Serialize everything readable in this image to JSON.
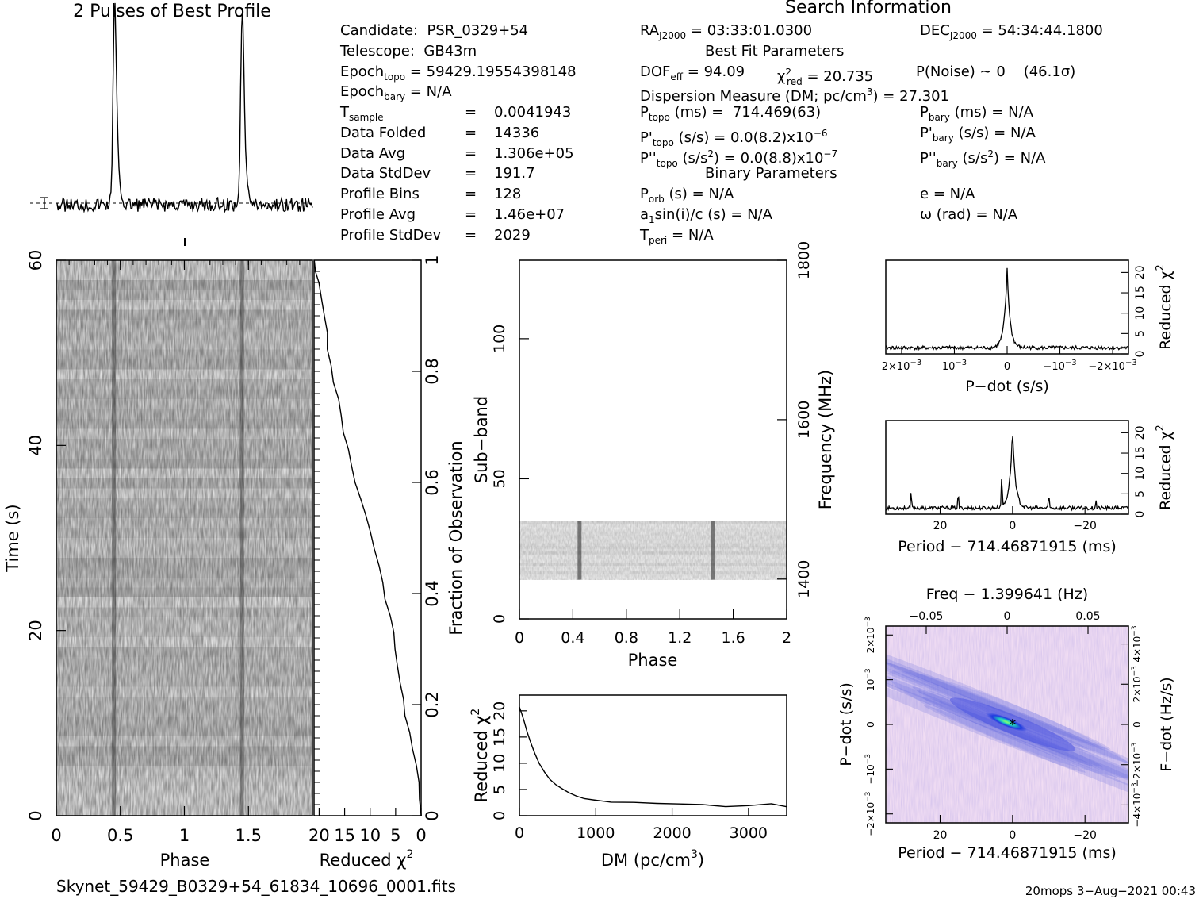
{
  "header": {
    "pulses_title": "2 Pulses of Best Profile",
    "search_title": "Search Information",
    "best_fit_title": "Best Fit Parameters",
    "binary_title": "Binary Parameters"
  },
  "candidate_info": {
    "candidate": {
      "label": "Candidate:",
      "value": "PSR_0329+54"
    },
    "telescope": {
      "label": "Telescope:",
      "value": "GB43m"
    },
    "epoch_topo": {
      "label": "Epoch",
      "sub": "topo",
      "value": "= 59429.19554398148"
    },
    "epoch_bary": {
      "label": "Epoch",
      "sub": "bary",
      "value": "= N/A"
    },
    "t_sample": {
      "label": "T",
      "sub": "sample",
      "eq": "=",
      "value": "0.0041943"
    },
    "data_folded": {
      "label": "Data Folded",
      "eq": "=",
      "value": "14336"
    },
    "data_avg": {
      "label": "Data Avg",
      "eq": "=",
      "value": "1.306e+05"
    },
    "data_stddev": {
      "label": "Data StdDev",
      "eq": "=",
      "value": "191.7"
    },
    "profile_bins": {
      "label": "Profile Bins",
      "eq": "=",
      "value": "128"
    },
    "profile_avg": {
      "label": "Profile Avg",
      "eq": "=",
      "value": "1.46e+07"
    },
    "profile_stddev": {
      "label": "Profile StdDev",
      "eq": "=",
      "value": "2029"
    }
  },
  "search_info": {
    "ra": {
      "label": "RA",
      "sub": "J2000",
      "value": "= 03:33:01.0300"
    },
    "dec": {
      "label": "DEC",
      "sub": "J2000",
      "value": "= 54:34:44.1800"
    },
    "dof": {
      "label": "DOF",
      "sub": "eff",
      "value": "= 94.09"
    },
    "chi2": {
      "label": "χ",
      "sup": "2",
      "sub": "red",
      "value": "= 20.735"
    },
    "p_noise": {
      "label": "P(Noise) ~ 0",
      "sigma": "(46.1σ)"
    },
    "dm": {
      "label": "Dispersion Measure (DM; pc/cm",
      "sup": "3",
      "value": ") = 27.301"
    },
    "p_topo": {
      "label": "P",
      "sub": "topo",
      "unit": " (ms) =",
      "value": "714.469(63)"
    },
    "p_bary": {
      "label": "P",
      "sub": "bary",
      "unit": " (ms) =",
      "value": "N/A"
    },
    "pd_topo": {
      "label": "P'",
      "sub": "topo",
      "unit": " (s/s) =",
      "value": "0.0(8.2)x10",
      "exp": "−6"
    },
    "pd_bary": {
      "label": "P'",
      "sub": "bary",
      "unit": " (s/s) =",
      "value": "N/A"
    },
    "pdd_topo": {
      "label": "P''",
      "sub": "topo",
      "unit": " (s/s",
      "unit_sup": "2",
      "unit_end": ") =",
      "value": "0.0(8.8)x10",
      "exp": "−7"
    },
    "pdd_bary": {
      "label": "P''",
      "sub": "bary",
      "unit": " (s/s",
      "unit_sup": "2",
      "unit_end": ") =",
      "value": "N/A"
    },
    "porb": {
      "label": "P",
      "sub": "orb",
      "unit": " (s) =",
      "value": "N/A"
    },
    "ecc": {
      "label": "e",
      "value": "= N/A"
    },
    "a1sini": {
      "label": "a",
      "sub": "1",
      "unit": "sin(i)/c (s) =",
      "value": "N/A"
    },
    "omega": {
      "label": "ω (rad)",
      "value": "= N/A"
    },
    "tperi": {
      "label": "T",
      "sub": "peri",
      "value": "= N/A"
    }
  },
  "footer": {
    "filename": "Skynet_59429_B0329+54_61834_10696_0001.fits",
    "stamp": "20mops  3−Aug−2021 00:43"
  },
  "chart_data": [
    {
      "id": "profile",
      "type": "line",
      "title": "2 Pulses of Best Profile",
      "x": [
        0,
        2
      ],
      "peaks": [
        0.45,
        1.45
      ],
      "baseline": 0.0,
      "peak_height": 1.0,
      "errorbar": true
    },
    {
      "id": "time_phase",
      "type": "heatmap",
      "xlabel": "Phase",
      "ylabel": "Time (s)",
      "xlim": [
        0,
        2
      ],
      "ylim": [
        0,
        60
      ],
      "xticks": [
        "0",
        "0.5",
        "1",
        "1.5"
      ],
      "yticks": [
        "0",
        "20",
        "40",
        "60"
      ],
      "pulse_phases": [
        0.45,
        1.45
      ]
    },
    {
      "id": "time_chi2",
      "type": "line",
      "xlabel": "Reduced χ",
      "xlabel_sup": "2",
      "ylabel": "Fraction of Observation",
      "xlim": [
        21,
        0
      ],
      "ylim": [
        0,
        1
      ],
      "xticks": [
        "20",
        "15",
        "10",
        "5",
        "0"
      ],
      "yticks": [
        "0",
        "0.2",
        "0.4",
        "0.6",
        "0.8",
        "1"
      ],
      "x": [
        0,
        0.2,
        0.5,
        1,
        1.6,
        2.3,
        3,
        3.5,
        4,
        4.6,
        5.1,
        5.5,
        6.2,
        7,
        7.7,
        8.4,
        9.2,
        10.1,
        11,
        11.9,
        12.8,
        13.6,
        14.5,
        15.1,
        15.8,
        16.4,
        17.1,
        17.6,
        18.2,
        18.6,
        19.1,
        19.6,
        20.1,
        20.6,
        20.8
      ],
      "y": [
        0,
        0.03,
        0.06,
        0.09,
        0.12,
        0.15,
        0.18,
        0.21,
        0.24,
        0.27,
        0.3,
        0.33,
        0.36,
        0.39,
        0.42,
        0.45,
        0.48,
        0.51,
        0.54,
        0.57,
        0.6,
        0.63,
        0.66,
        0.69,
        0.72,
        0.75,
        0.78,
        0.81,
        0.84,
        0.87,
        0.9,
        0.93,
        0.96,
        0.98,
        1.0
      ]
    },
    {
      "id": "subband_phase",
      "type": "heatmap",
      "xlabel": "Phase",
      "ylabel": "Sub−band",
      "y2label": "Frequency (MHz)",
      "xlim": [
        0,
        2
      ],
      "ylim": [
        0,
        128
      ],
      "xticks": [
        "0",
        "0.4",
        "0.8",
        "1.2",
        "1.6",
        "2"
      ],
      "yticks": [
        "0",
        "50",
        "100"
      ],
      "y2ticks": [
        "1400",
        "1600",
        "1800"
      ],
      "band_range": [
        14,
        35
      ],
      "pulse_phases": [
        0.45,
        1.45
      ]
    },
    {
      "id": "dm_chi2",
      "type": "line",
      "xlabel": "DM (pc/cm",
      "xlabel_sup": "3",
      "xlabel_end": ")",
      "ylabel": "Reduced χ",
      "ylabel_sup": "2",
      "xlim": [
        0,
        3500
      ],
      "ylim": [
        0,
        23
      ],
      "xticks": [
        "0",
        "1000",
        "2000",
        "3000"
      ],
      "yticks": [
        "0",
        "5",
        "10",
        "15",
        "20"
      ],
      "x": [
        0,
        30,
        60,
        100,
        150,
        200,
        260,
        330,
        400,
        480,
        560,
        650,
        750,
        850,
        1000,
        1200,
        1500,
        1800,
        2100,
        2400,
        2700,
        3000,
        3300,
        3500
      ],
      "y": [
        20.7,
        19.5,
        18,
        16,
        13.8,
        11.8,
        10,
        8.3,
        7,
        6,
        5.1,
        4.3,
        3.7,
        3.3,
        2.9,
        2.6,
        2.5,
        2.4,
        2.3,
        2.1,
        1.8,
        1.9,
        2.3,
        1.6
      ]
    },
    {
      "id": "pdot_chi2",
      "type": "line",
      "xlabel": "P−dot (s/s)",
      "ylabel": "Reduced χ",
      "ylabel_sup": "2",
      "xlim": [
        0.0023,
        -0.0023
      ],
      "ylim": [
        0,
        23
      ],
      "xticks_val": [
        0.002,
        0.001,
        0,
        -0.001,
        -0.002
      ],
      "yticks": [
        "0",
        "5",
        "10",
        "15",
        "20"
      ],
      "peak_x": 0,
      "peak_y": 20.7,
      "baseline": 1.5
    },
    {
      "id": "period_chi2",
      "type": "line",
      "xlabel": "Period − 714.46871915 (ms)",
      "ylabel": "Reduced χ",
      "ylabel_sup": "2",
      "xlim": [
        35,
        -32
      ],
      "ylim": [
        0,
        23
      ],
      "xticks": [
        "20",
        "0",
        "−20"
      ],
      "yticks": [
        "0",
        "5",
        "10",
        "15",
        "20"
      ],
      "peak_x": 0,
      "peak_y": 20.7,
      "baseline": 1.5,
      "side_spikes_x": [
        28,
        15,
        3,
        -10,
        -23
      ],
      "side_spikes_y": [
        5.5,
        5.0,
        9.5,
        5.2,
        3.5
      ]
    },
    {
      "id": "period_pdot",
      "type": "heatmap",
      "xlabel": "Period − 714.46871915 (ms)",
      "x2label": "Freq − 1.399641 (Hz)",
      "ylabel": "P−dot (s/s)",
      "y2label": "F−dot (Hz/s)",
      "xlim": [
        35,
        -32
      ],
      "ylim": [
        -0.0022,
        0.0022
      ],
      "xticks": [
        "20",
        "0",
        "−20"
      ],
      "x2ticks": [
        "−0.05",
        "0",
        "0.05"
      ],
      "best_fit": [
        0,
        0
      ]
    }
  ]
}
